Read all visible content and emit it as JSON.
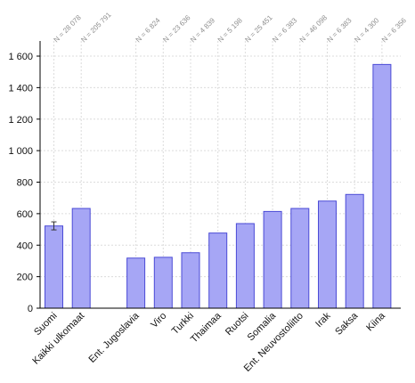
{
  "chart_data": {
    "type": "bar",
    "categories": [
      "Suomi",
      "Kaikki ulkomaat",
      "Ent. Jugoslavia",
      "Viro",
      "Turkki",
      "Thaimaa",
      "Ruotsi",
      "Somalia",
      "Ent. Neuvostoliitto",
      "Irak",
      "Saksa",
      "Kiina"
    ],
    "values": [
      522,
      633,
      318,
      323,
      352,
      477,
      537,
      614,
      633,
      680,
      722,
      1547
    ],
    "n_labels": [
      "N = 28 078",
      "N = 205 791",
      "N = 6 824",
      "N = 23 636",
      "N = 4 839",
      "N = 5 198",
      "N = 25 451",
      "N = 6 383",
      "N = 46 098",
      "N = 6 383",
      "N = 4 300",
      "N = 6 356"
    ],
    "error_bar": {
      "category": "Suomi",
      "low": 497,
      "high": 548
    },
    "gap_after_index": 1,
    "y_ticks": [
      0,
      200,
      400,
      600,
      800,
      1000,
      1200,
      1400,
      1600
    ],
    "y_tick_labels": [
      "0",
      "200",
      "400",
      "600",
      "800",
      "1 000",
      "1 200",
      "1 400",
      "1 600"
    ],
    "ylim": [
      0,
      1660
    ],
    "grid": true,
    "colors": {
      "bar_fill": "#a6a6f5",
      "bar_stroke": "#4b4bd6",
      "grid": "#dcdcdc",
      "axis": "#000000",
      "n_label": "#8c8c8c"
    }
  }
}
